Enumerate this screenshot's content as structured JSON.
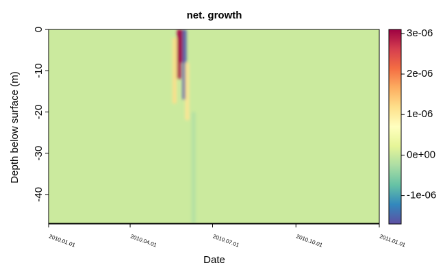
{
  "chart_data": {
    "type": "heatmap",
    "title": "net. growth",
    "xlabel": "Date",
    "ylabel": "Depth below surface (m)",
    "x_range": [
      "2010-01-01",
      "2011-01-01"
    ],
    "x_ticks": [
      "2010.01.01",
      "2010.04.01",
      "2010.07.01",
      "2010.10.01",
      "2011.01.01"
    ],
    "x_tick_dates": [
      "2010-01-01",
      "2010-04-01",
      "2010-07-01",
      "2010-10-01",
      "2011-01-01"
    ],
    "y_range": [
      -47,
      0
    ],
    "y_ticks": [
      0,
      -10,
      -20,
      -30,
      -40
    ],
    "y_tick_labels": [
      "0",
      "-10",
      "-20",
      "-30",
      "-40"
    ],
    "colorbar": {
      "range": [
        -1.7e-06,
        3.1e-06
      ],
      "ticks": [
        -1e-06,
        0,
        1e-06,
        2e-06,
        3e-06
      ],
      "tick_labels": [
        "-1e-06",
        "0e+00",
        "1e-06",
        "2e-06",
        "3e-06"
      ],
      "palette": [
        "#5e4fa2",
        "#3288bd",
        "#66c2a5",
        "#abdda4",
        "#e6f598",
        "#ffffbf",
        "#fee08b",
        "#fdae61",
        "#f46d43",
        "#d53e4f",
        "#9e0142"
      ]
    },
    "background_value": 0,
    "features": [
      {
        "date": "2010-05-25",
        "depth_top": 0,
        "depth_bottom": -12,
        "value": 3e-06
      },
      {
        "date": "2010-05-27",
        "depth_top": 0,
        "depth_bottom": -8,
        "value": 3.1e-06
      },
      {
        "date": "2010-05-20",
        "depth_top": -2,
        "depth_bottom": -18,
        "value": 1.2e-06
      },
      {
        "date": "2010-05-31",
        "depth_top": 0,
        "depth_bottom": -17,
        "value": -1.6e-06
      },
      {
        "date": "2010-06-03",
        "depth_top": -8,
        "depth_bottom": -22,
        "value": 1.1e-06
      },
      {
        "date": "2010-06-10",
        "depth_top": -20,
        "depth_bottom": -47,
        "value": -2e-07
      }
    ]
  }
}
